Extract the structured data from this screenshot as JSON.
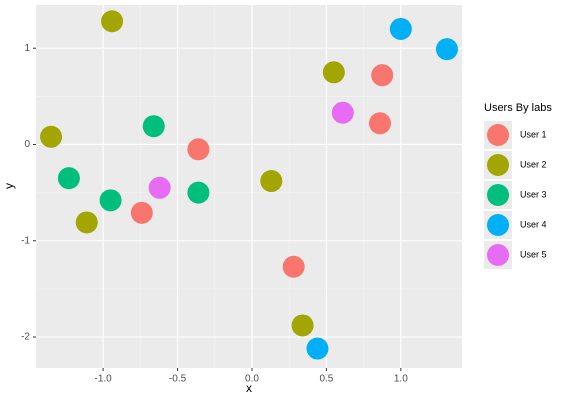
{
  "chart_data": {
    "type": "scatter",
    "x_label": "x",
    "y_label": "y",
    "legend_title": "Users By labs",
    "legend_position": "right",
    "grid": true,
    "xlim": [
      -1.451,
      1.411
    ],
    "ylim": [
      -2.322,
      1.449
    ],
    "xticks": [
      {
        "value": -1,
        "label": "-1.0"
      },
      {
        "value": -0.5,
        "label": "-0.5"
      },
      {
        "value": 0,
        "label": "0.0"
      },
      {
        "value": 0.5,
        "label": "0.5"
      },
      {
        "value": 1,
        "label": "1.0"
      }
    ],
    "yticks": [
      -2,
      -1,
      0,
      1
    ],
    "series": [
      {
        "name": "User 1",
        "color": "#F8766D",
        "x": [
          0.875,
          0.86,
          -0.36,
          -0.74,
          0.28
        ],
        "y": [
          0.72,
          0.22,
          -0.05,
          -0.71,
          -1.27
        ]
      },
      {
        "name": "User 2",
        "color": "#A3A500",
        "x": [
          -0.94,
          -1.35,
          -1.11,
          0.55,
          0.13,
          0.34
        ],
        "y": [
          1.28,
          0.08,
          -0.81,
          0.75,
          -0.38,
          -1.88
        ]
      },
      {
        "name": "User 3",
        "color": "#00BF7D",
        "x": [
          -0.66,
          -1.23,
          -0.95,
          -0.36
        ],
        "y": [
          0.19,
          -0.35,
          -0.58,
          -0.5
        ]
      },
      {
        "name": "User 4",
        "color": "#00B0F6",
        "x": [
          1.0,
          1.31,
          0.44
        ],
        "y": [
          1.2,
          0.99,
          -2.12
        ]
      },
      {
        "name": "User 5",
        "color": "#E76BF3",
        "x": [
          0.61,
          -0.62
        ],
        "y": [
          0.33,
          -0.45
        ]
      }
    ]
  }
}
